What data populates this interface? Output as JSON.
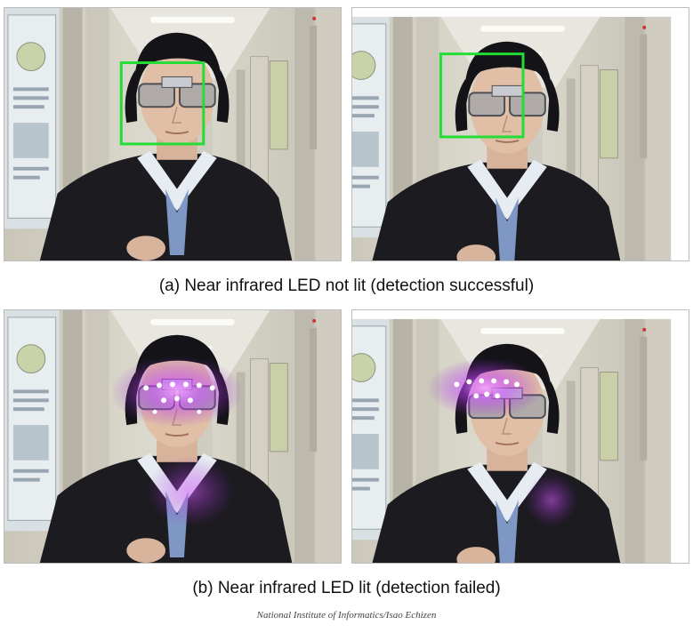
{
  "panels": [
    {
      "id": "a-left",
      "face_box_visible": true,
      "led_lit": false
    },
    {
      "id": "a-right",
      "face_box_visible": true,
      "led_lit": false
    },
    {
      "id": "b-left",
      "face_box_visible": false,
      "led_lit": true
    },
    {
      "id": "b-right",
      "face_box_visible": false,
      "led_lit": true
    }
  ],
  "captions": {
    "a": "(a) Near infrared LED not lit (detection successful)",
    "b": "(b) Near infrared LED lit (detection failed)"
  },
  "credit": "National Institute of Informatics/Isao Echizen",
  "colors": {
    "detection_box": "#22dd33",
    "led_glow": "#d040ff",
    "background": "#ffffff"
  }
}
